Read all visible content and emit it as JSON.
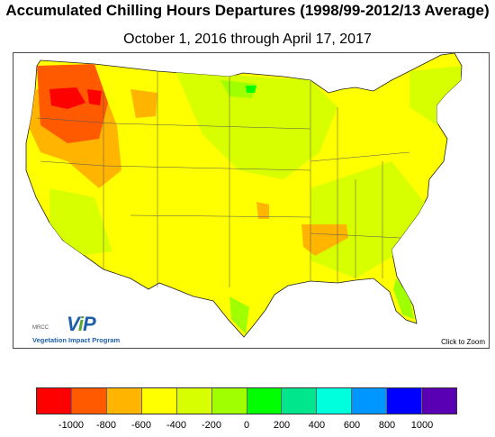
{
  "title": "Accumulated Chilling Hours Departures (1998/99-2012/13 Average)",
  "subtitle": "October 1, 2016 through April 17, 2017",
  "map": {
    "zoom_note": "Click to Zoom",
    "logo": {
      "mark_prefix": "V",
      "mark_leaf": "i",
      "mark_suffix": "P",
      "agency": "MRCC",
      "name": "Vegetation Impact Program"
    },
    "regions": [
      "Pacific Northwest: -600 to -1000 (much fewer chilling hours)",
      "Northern Rockies / Great Basin: -400 to -600",
      "Most of contiguous US: -200 to -400",
      "Northern Plains / Upper Midwest patches: 0 to -200"
    ]
  },
  "legend": {
    "colors": [
      "#ff0000",
      "#ff5a00",
      "#ffb400",
      "#ffff00",
      "#d7ff00",
      "#a0ff00",
      "#00ff00",
      "#00e68c",
      "#00ffdc",
      "#0096ff",
      "#0000ff",
      "#5a00b4"
    ],
    "labels": [
      "-1000",
      "-800",
      "-600",
      "-400",
      "-200",
      "0",
      "200",
      "400",
      "600",
      "800",
      "1000"
    ]
  }
}
